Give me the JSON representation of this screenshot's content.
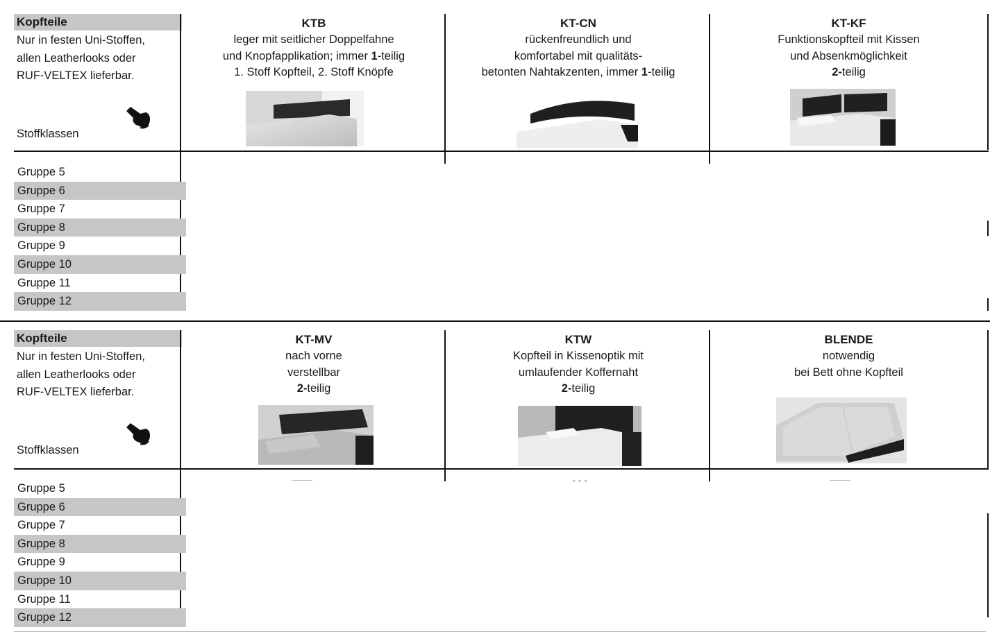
{
  "section1": {
    "left": {
      "title": "Kopfteile",
      "desc_lines": [
        "Nur in festen Uni-Stoffen,",
        "allen Leatherlooks oder",
        "RUF-VELTEX lieferbar."
      ],
      "footer": "Stoffklassen",
      "icon": "pointing-hand-icon"
    },
    "groups": [
      "Gruppe 5",
      "Gruppe 6",
      "Gruppe 7",
      "Gruppe 8",
      "Gruppe 9",
      "Gruppe 10",
      "Gruppe 11",
      "Gruppe 12"
    ],
    "products": [
      {
        "name": "KTB",
        "line1": "leger mit seitlicher Doppelfahne",
        "line2_pre": "und Knopfapplikation; immer ",
        "line2_bold": "1",
        "line2_post": "-teilig",
        "line3": "1. Stoff Kopfteil, 2. Stoff Knöpfe"
      },
      {
        "name": "KT-CN",
        "line1": "rückenfreundlich und",
        "line2": "komfortabel mit qualitäts-",
        "line3_pre": "betonten  Nahtakzenten, immer ",
        "line3_bold": "1",
        "line3_post": "-teilig"
      },
      {
        "name": "KT-KF",
        "line1": "Funktionskopfteil mit Kissen",
        "line2": "und Absenkmöglichkeit",
        "line3_bold": "2-",
        "line3_post": "teilig"
      }
    ]
  },
  "section2": {
    "left": {
      "title": "Kopfteile",
      "desc_lines": [
        "Nur in festen Uni-Stoffen,",
        "allen Leatherlooks oder",
        "RUF-VELTEX lieferbar."
      ],
      "footer": "Stoffklassen",
      "icon": "pointing-hand-icon"
    },
    "groups": [
      "Gruppe 5",
      "Gruppe 6",
      "Gruppe 7",
      "Gruppe 8",
      "Gruppe 9",
      "Gruppe 10",
      "Gruppe 11",
      "Gruppe 12"
    ],
    "products": [
      {
        "name": "KT-MV",
        "line1": "nach vorne",
        "line2": "verstellbar",
        "line3_bold": "2-",
        "line3_post": "teilig"
      },
      {
        "name": "KTW",
        "line1": "Kopfteil in Kissenoptik mit",
        "line2": "umlaufender Koffernaht",
        "line3_bold": "2-",
        "line3_post": "teilig",
        "marker": "- - -"
      },
      {
        "name": "BLENDE",
        "line1": "notwendig",
        "line2": "bei Bett ohne Kopfteil"
      }
    ]
  }
}
